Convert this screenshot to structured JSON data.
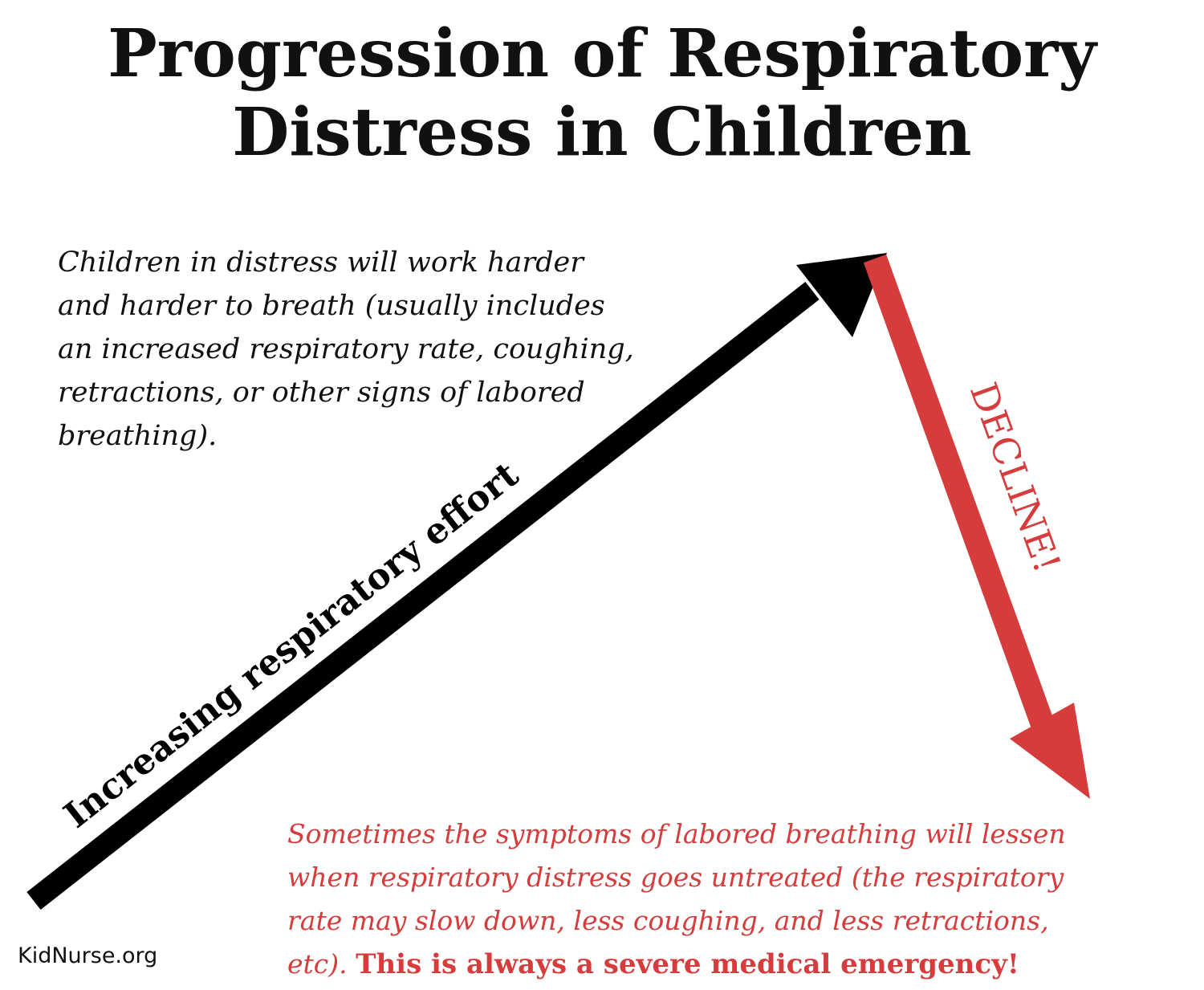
{
  "title": {
    "line1": "Progression of Respiratory",
    "line2": "Distress in Children"
  },
  "intro": {
    "lines": [
      "Children in distress will work harder",
      "and harder to breath (usually includes",
      "an increased respiratory rate, coughing,",
      "retractions, or other signs of labored",
      "breathing)."
    ]
  },
  "rising_arrow": {
    "label": "Increasing respiratory effort",
    "color": "#000000"
  },
  "decline_arrow": {
    "label": "DECLINE!",
    "color": "#d63c3c"
  },
  "warning": {
    "lines": [
      "Sometimes the symptoms of labored breathing will lessen",
      "when respiratory distress goes untreated (the respiratory",
      "rate may slow down, less coughing, and less retractions,"
    ],
    "last_line_italic": "etc).",
    "emphasis": "This is always a severe medical emergency!",
    "color": "#d63c3c"
  },
  "footer": {
    "site": "KidNurse.org"
  }
}
